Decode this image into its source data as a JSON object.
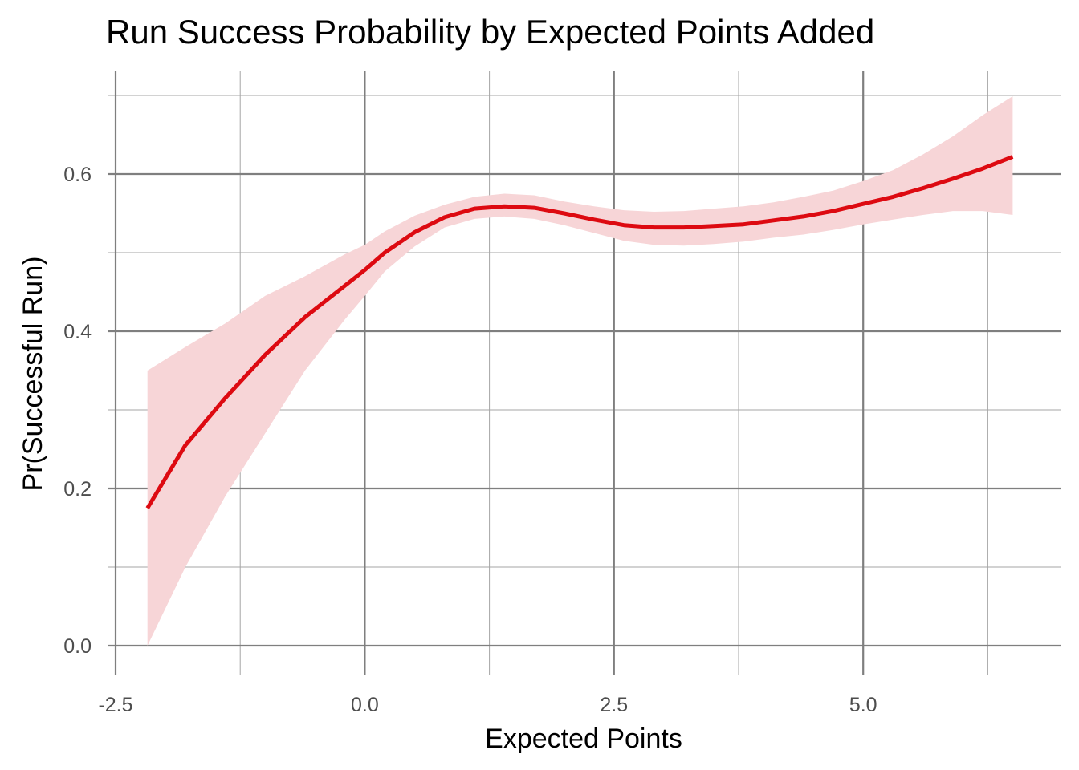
{
  "chart_data": {
    "type": "line",
    "title": "Run Success Probability by Expected Points Added",
    "xlabel": "Expected Points",
    "ylabel": "Pr(Successful Run)",
    "xlim": [
      -2.5,
      6.6
    ],
    "ylim": [
      -0.035,
      0.705
    ],
    "x_ticks": [
      -2.5,
      0.0,
      2.5,
      5.0
    ],
    "x_tick_labels": [
      "-2.5",
      "0.0",
      "2.5",
      "5.0"
    ],
    "x_minor_ticks": [
      -1.25,
      1.25,
      3.75,
      6.25
    ],
    "y_ticks": [
      0.0,
      0.2,
      0.4,
      0.6
    ],
    "y_tick_labels": [
      "0.0",
      "0.2",
      "0.4",
      "0.6"
    ],
    "y_minor_ticks": [
      0.1,
      0.3,
      0.5,
      0.7
    ],
    "grid": true,
    "legend": "none",
    "colors": {
      "line": "#dd0a11",
      "ribbon": "#f7d5d7",
      "grid": "#7f7f7f"
    },
    "series": [
      {
        "x": [
          -2.18,
          -1.8,
          -1.4,
          -1.0,
          -0.6,
          -0.2,
          0.0,
          0.2,
          0.5,
          0.8,
          1.1,
          1.4,
          1.7,
          2.0,
          2.3,
          2.6,
          2.9,
          3.2,
          3.5,
          3.8,
          4.1,
          4.4,
          4.7,
          5.0,
          5.3,
          5.6,
          5.9,
          6.2,
          6.5
        ],
        "y": [
          0.175,
          0.255,
          0.315,
          0.37,
          0.418,
          0.458,
          0.478,
          0.5,
          0.526,
          0.545,
          0.556,
          0.559,
          0.557,
          0.55,
          0.542,
          0.535,
          0.532,
          0.532,
          0.534,
          0.536,
          0.541,
          0.546,
          0.553,
          0.562,
          0.571,
          0.582,
          0.594,
          0.607,
          0.622
        ],
        "lower": [
          0.0,
          0.1,
          0.19,
          0.27,
          0.35,
          0.415,
          0.445,
          0.476,
          0.508,
          0.532,
          0.543,
          0.546,
          0.543,
          0.535,
          0.525,
          0.515,
          0.51,
          0.509,
          0.511,
          0.514,
          0.519,
          0.523,
          0.529,
          0.536,
          0.542,
          0.548,
          0.553,
          0.553,
          0.548
        ],
        "upper": [
          0.35,
          0.38,
          0.41,
          0.445,
          0.47,
          0.498,
          0.51,
          0.527,
          0.547,
          0.561,
          0.571,
          0.575,
          0.573,
          0.565,
          0.559,
          0.554,
          0.552,
          0.553,
          0.556,
          0.559,
          0.564,
          0.571,
          0.579,
          0.591,
          0.605,
          0.625,
          0.648,
          0.675,
          0.699
        ]
      }
    ]
  }
}
